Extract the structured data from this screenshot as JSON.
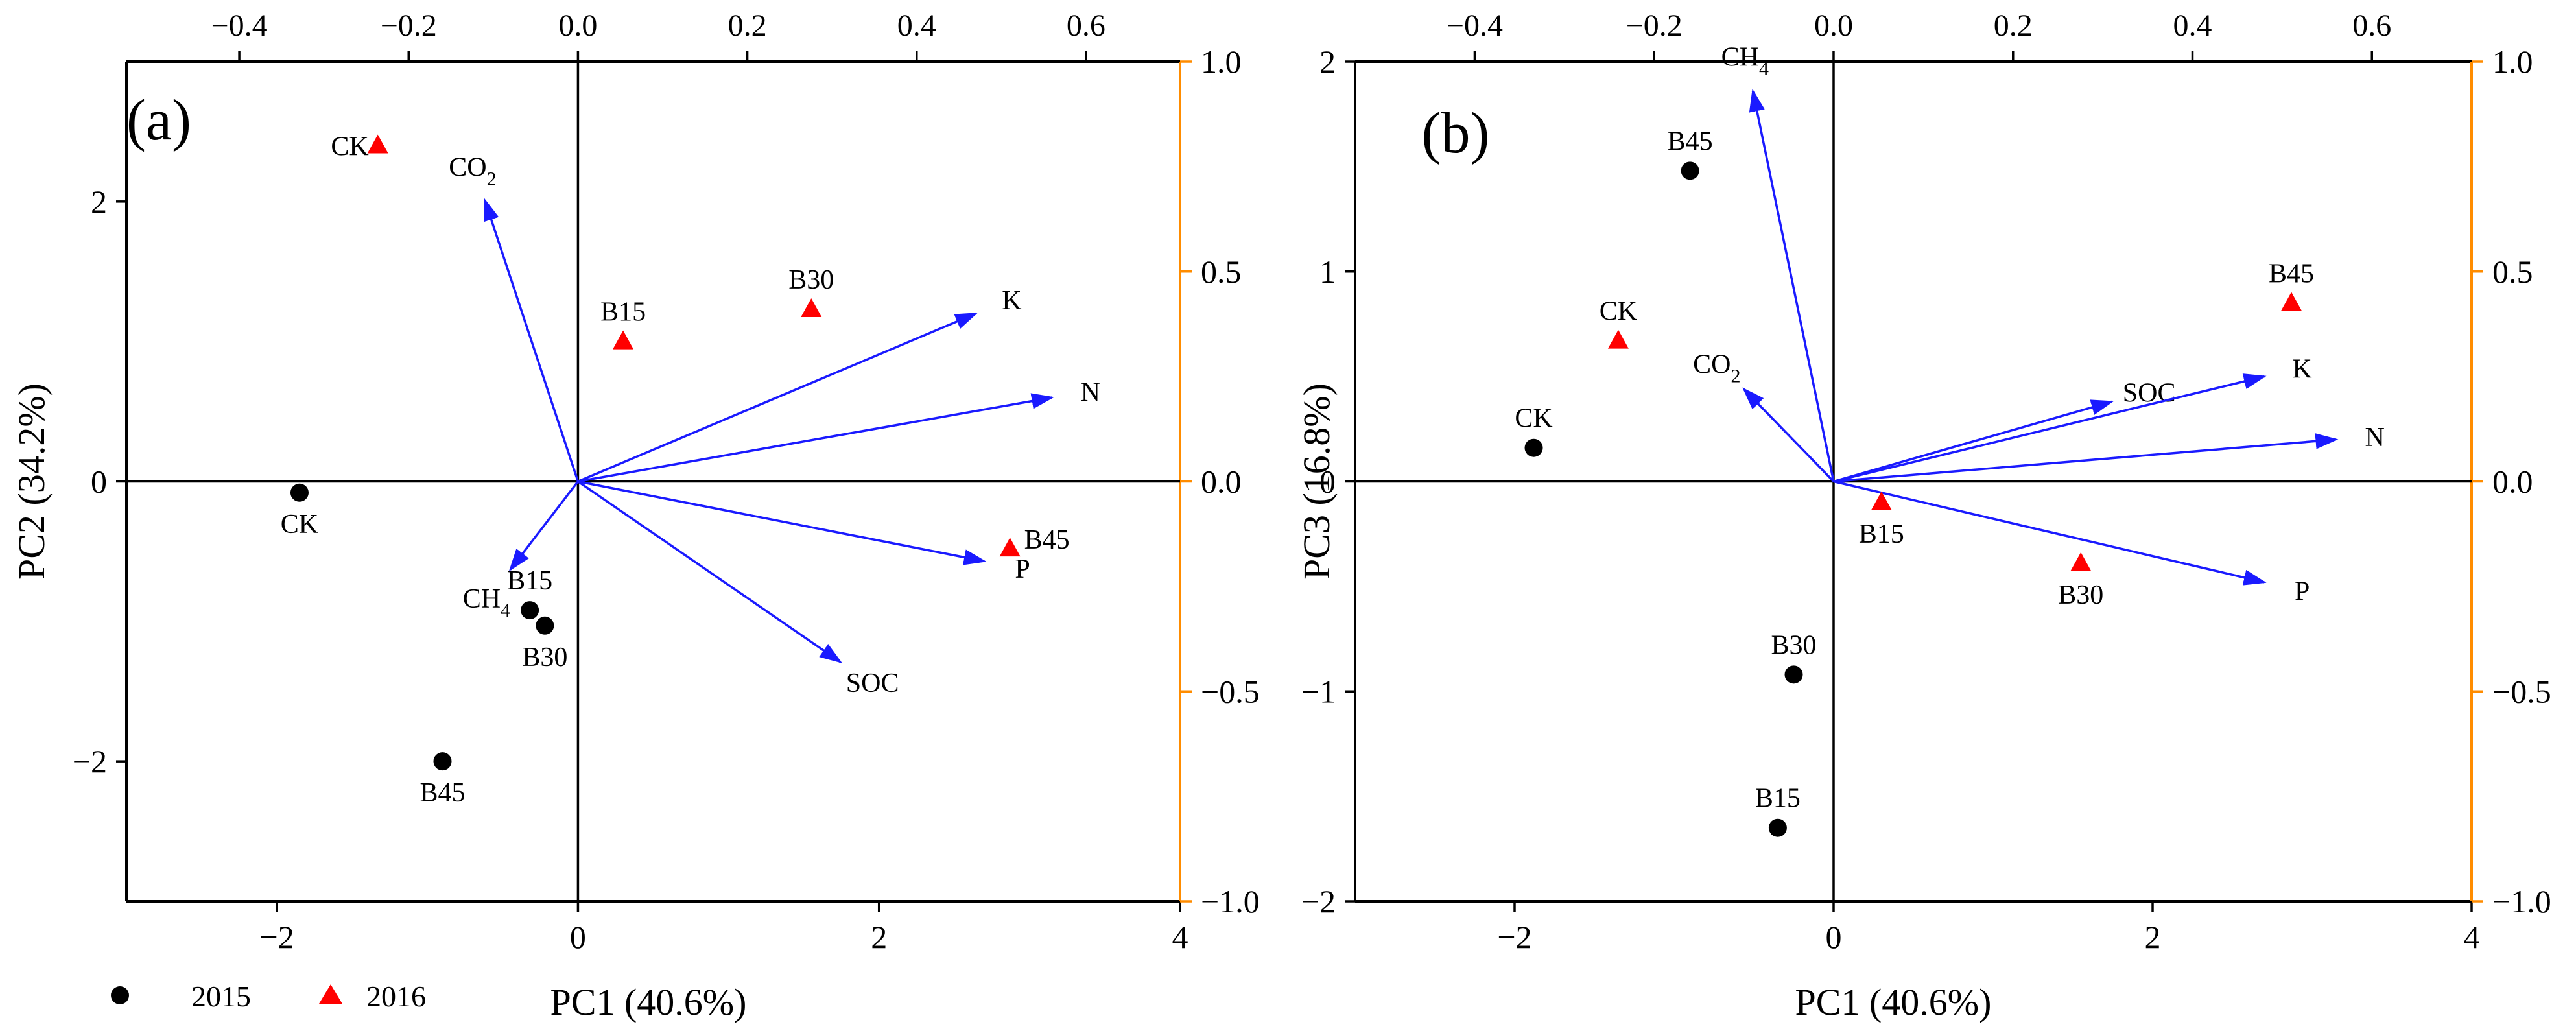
{
  "colors": {
    "arrow": "#1a1aff",
    "marker_2015": "#000000",
    "marker_2016": "#ff0000",
    "secondary_axis": "#ff8c00",
    "axis": "#000000"
  },
  "legend": {
    "entries": [
      {
        "label": "2015",
        "marker": "circle"
      },
      {
        "label": "2016",
        "marker": "triangle"
      }
    ]
  },
  "chart_data": [
    {
      "type": "scatter",
      "panel_label": "(a)",
      "xlabel": "PC1 (40.6%)",
      "ylabel": "PC2 (34.2%)",
      "xlim": [
        -3,
        4
      ],
      "ylim": [
        -3,
        3
      ],
      "xticks": [
        -2,
        0,
        2,
        4
      ],
      "xtick_labels": [
        "−2",
        "0",
        "2",
        "4"
      ],
      "yticks": [
        -2,
        0,
        2
      ],
      "ytick_labels": [
        "−2",
        "0",
        "2"
      ],
      "secondary_xlim": [
        -0.5333,
        0.7111
      ],
      "secondary_xticks": [
        -0.4,
        -0.2,
        0.0,
        0.2,
        0.4,
        0.6
      ],
      "secondary_xtick_labels": [
        "−0.4",
        "−0.2",
        "0.0",
        "0.2",
        "0.4",
        "0.6"
      ],
      "secondary_ylim": [
        -1.0,
        1.0
      ],
      "secondary_yticks": [
        -1.0,
        -0.5,
        0.0,
        0.5,
        1.0
      ],
      "secondary_ytick_labels": [
        "−1.0",
        "−0.5",
        "0.0",
        "0.5",
        "1.0"
      ],
      "series": [
        {
          "name": "2015",
          "points": [
            {
              "label": "CK",
              "x": -1.85,
              "y": -0.08,
              "label_pos": "below"
            },
            {
              "label": "B15",
              "x": -0.32,
              "y": -0.92,
              "label_pos": "above"
            },
            {
              "label": "B30",
              "x": -0.22,
              "y": -1.03,
              "label_pos": "below"
            },
            {
              "label": "B45",
              "x": -0.9,
              "y": -2.0,
              "label_pos": "below"
            }
          ]
        },
        {
          "name": "2016",
          "points": [
            {
              "label": "CK",
              "x": -1.33,
              "y": 2.4,
              "label_pos": "left"
            },
            {
              "label": "B15",
              "x": 0.3,
              "y": 1.0,
              "label_pos": "above"
            },
            {
              "label": "B30",
              "x": 1.55,
              "y": 1.23,
              "label_pos": "above"
            },
            {
              "label": "B45",
              "x": 2.87,
              "y": -0.48,
              "label_pos": "right"
            }
          ]
        }
      ],
      "loadings": [
        {
          "name": "CO₂",
          "base": "CO",
          "sub": "2",
          "x": -0.11,
          "y": 0.67
        },
        {
          "name": "K",
          "x": 0.47,
          "y": 0.4
        },
        {
          "name": "N",
          "x": 0.56,
          "y": 0.2
        },
        {
          "name": "P",
          "x": 0.48,
          "y": -0.19
        },
        {
          "name": "SOC",
          "x": 0.31,
          "y": -0.43
        },
        {
          "name": "CH₄",
          "base": "CH",
          "sub": "4",
          "x": -0.08,
          "y": -0.21
        }
      ]
    },
    {
      "type": "scatter",
      "panel_label": "(b)",
      "xlabel": "PC1 (40.6%)",
      "ylabel": "PC3 (16.8%)",
      "xlim": [
        -3,
        4
      ],
      "ylim": [
        -2,
        2
      ],
      "xticks": [
        -2,
        0,
        2,
        4
      ],
      "xtick_labels": [
        "−2",
        "0",
        "2",
        "4"
      ],
      "yticks": [
        -2,
        -1,
        0,
        1,
        2
      ],
      "ytick_labels": [
        "−2",
        "−1",
        "0",
        "1",
        "2"
      ],
      "secondary_xlim": [
        -0.5333,
        0.7111
      ],
      "secondary_xticks": [
        -0.4,
        -0.2,
        0.0,
        0.2,
        0.4,
        0.6
      ],
      "secondary_xtick_labels": [
        "−0.4",
        "−0.2",
        "0.0",
        "0.2",
        "0.4",
        "0.6"
      ],
      "secondary_ylim": [
        -1.0,
        1.0
      ],
      "secondary_yticks": [
        -1.0,
        -0.5,
        0.0,
        0.5,
        1.0
      ],
      "secondary_ytick_labels": [
        "−1.0",
        "−0.5",
        "0.0",
        "0.5",
        "1.0"
      ],
      "series": [
        {
          "name": "2015",
          "points": [
            {
              "label": "CK",
              "x": -1.88,
              "y": 0.16,
              "label_pos": "above"
            },
            {
              "label": "B45",
              "x": -0.9,
              "y": 1.48,
              "label_pos": "above"
            },
            {
              "label": "B30",
              "x": -0.25,
              "y": -0.92,
              "label_pos": "above"
            },
            {
              "label": "B15",
              "x": -0.35,
              "y": -1.65,
              "label_pos": "above"
            }
          ]
        },
        {
          "name": "2016",
          "points": [
            {
              "label": "CK",
              "x": -1.35,
              "y": 0.67,
              "label_pos": "above"
            },
            {
              "label": "B15",
              "x": 0.3,
              "y": -0.1,
              "label_pos": "below"
            },
            {
              "label": "B30",
              "x": 1.55,
              "y": -0.39,
              "label_pos": "below"
            },
            {
              "label": "B45",
              "x": 2.87,
              "y": 0.85,
              "label_pos": "above"
            }
          ]
        }
      ],
      "loadings": [
        {
          "name": "CH₄",
          "base": "CH",
          "sub": "4",
          "x": -0.09,
          "y": 0.93
        },
        {
          "name": "CO₂",
          "base": "CO",
          "sub": "2",
          "x": -0.1,
          "y": 0.22
        },
        {
          "name": "SOC",
          "x": 0.31,
          "y": 0.19
        },
        {
          "name": "K",
          "x": 0.48,
          "y": 0.25
        },
        {
          "name": "N",
          "x": 0.56,
          "y": 0.1
        },
        {
          "name": "P",
          "x": 0.48,
          "y": -0.24
        }
      ]
    }
  ]
}
